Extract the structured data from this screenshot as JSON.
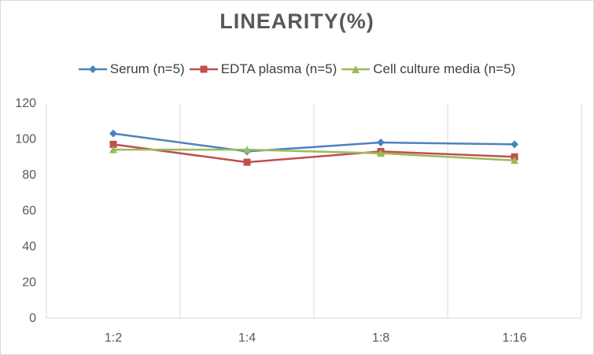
{
  "chart_data": {
    "type": "line",
    "title": "LINEARITY(%)",
    "categories": [
      "1:2",
      "1:4",
      "1:8",
      "1:16"
    ],
    "ylim": [
      0,
      120
    ],
    "yticks": [
      0,
      20,
      40,
      60,
      80,
      100,
      120
    ],
    "grid": "vertical",
    "legend": "top",
    "series": [
      {
        "name": "Serum (n=5)",
        "values": [
          103,
          93,
          98,
          97
        ],
        "color": "#4f81bd",
        "marker": "diamond"
      },
      {
        "name": "EDTA plasma (n=5)",
        "values": [
          97,
          87,
          93,
          90
        ],
        "color": "#c0504d",
        "marker": "square"
      },
      {
        "name": "Cell culture media (n=5)",
        "values": [
          94,
          94,
          92,
          88
        ],
        "color": "#9bbb59",
        "marker": "triangle"
      }
    ]
  }
}
